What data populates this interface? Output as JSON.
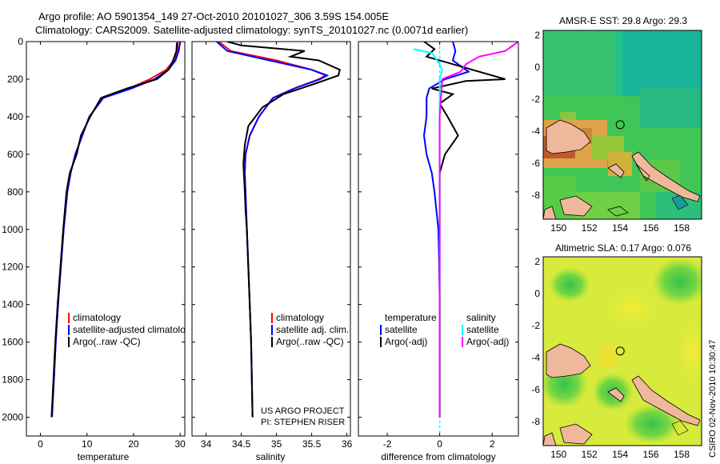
{
  "title": {
    "line1": "Argo profile: AO 5901354_149 27-Oct-2010 20101027_306 3.59S 154.005E",
    "line2": "Climatology: CARS2009. Satellite-adjusted climatology: synTS_20101027.nc (0.0071d earlier)"
  },
  "side_note": "CSIRO 02-Nov-2010 10:30:47",
  "project_note": {
    "line1": "US ARGO PROJECT",
    "line2": "PI: STEPHEN RISER"
  },
  "chart_data": [
    {
      "type": "line",
      "id": "temperature",
      "xlabel": "temperature",
      "ylabel": "",
      "xlim": [
        -3,
        31
      ],
      "ylim": [
        2100,
        0
      ],
      "xticks": [
        0,
        10,
        20,
        30
      ],
      "yticks": [
        0,
        200,
        400,
        600,
        800,
        1000,
        1200,
        1400,
        1600,
        1800,
        2000
      ],
      "legend": [
        "climatology",
        "satellite-adjusted climatology",
        "Argo(..raw -QC)"
      ],
      "series": [
        {
          "name": "climatology",
          "color": "#ff0000",
          "points": [
            [
              29.5,
              0
            ],
            [
              29.4,
              50
            ],
            [
              28.7,
              100
            ],
            [
              27.0,
              150
            ],
            [
              23.5,
              200
            ],
            [
              19,
              250
            ],
            [
              13.5,
              300
            ],
            [
              10.5,
              400
            ],
            [
              9,
              500
            ],
            [
              7.5,
              600
            ],
            [
              6.5,
              700
            ],
            [
              5.8,
              800
            ],
            [
              5,
              1000
            ],
            [
              4.4,
              1200
            ],
            [
              3.8,
              1400
            ],
            [
              3.3,
              1600
            ],
            [
              2.9,
              1800
            ],
            [
              2.5,
              2000
            ]
          ]
        },
        {
          "name": "satellite-adjusted climatology",
          "color": "#0000ff",
          "points": [
            [
              30.0,
              0
            ],
            [
              29.7,
              50
            ],
            [
              29.0,
              100
            ],
            [
              27.5,
              150
            ],
            [
              24.5,
              200
            ],
            [
              19.5,
              250
            ],
            [
              13.5,
              300
            ],
            [
              10.5,
              400
            ],
            [
              9,
              500
            ],
            [
              7.5,
              600
            ],
            [
              6.5,
              700
            ],
            [
              5.8,
              800
            ],
            [
              5,
              1000
            ],
            [
              4.4,
              1200
            ],
            [
              3.8,
              1400
            ],
            [
              3.3,
              1600
            ],
            [
              2.9,
              1800
            ],
            [
              2.5,
              2000
            ]
          ]
        },
        {
          "name": "Argo(..raw -QC)",
          "color": "#000000",
          "points": [
            [
              29.3,
              5
            ],
            [
              29.2,
              50
            ],
            [
              28.5,
              100
            ],
            [
              27.5,
              150
            ],
            [
              25,
              200
            ],
            [
              18.5,
              250
            ],
            [
              13,
              300
            ],
            [
              10.7,
              400
            ],
            [
              8.7,
              500
            ],
            [
              7.8,
              600
            ],
            [
              6.3,
              700
            ],
            [
              5.6,
              800
            ],
            [
              4.9,
              1000
            ],
            [
              4.3,
              1200
            ],
            [
              3.7,
              1400
            ],
            [
              3.2,
              1600
            ],
            [
              2.8,
              1800
            ],
            [
              2.4,
              2000
            ]
          ]
        }
      ]
    },
    {
      "type": "line",
      "id": "salinity",
      "xlabel": "salinity",
      "ylabel": "",
      "xlim": [
        33.8,
        36.05
      ],
      "ylim": [
        2100,
        0
      ],
      "xticks": [
        34,
        34.5,
        35,
        35.5,
        36
      ],
      "legend": [
        "climatology",
        "satellite adj. clim.",
        "Argo(..raw -QC)"
      ],
      "series": [
        {
          "name": "climatology",
          "color": "#ff0000",
          "points": [
            [
              34.18,
              0
            ],
            [
              34.35,
              50
            ],
            [
              35.0,
              100
            ],
            [
              35.5,
              150
            ],
            [
              35.7,
              180
            ],
            [
              35.6,
              200
            ],
            [
              35.25,
              250
            ],
            [
              34.95,
              300
            ],
            [
              34.75,
              400
            ],
            [
              34.62,
              500
            ],
            [
              34.56,
              600
            ],
            [
              34.55,
              700
            ],
            [
              34.56,
              800
            ],
            [
              34.58,
              1000
            ],
            [
              34.6,
              1200
            ],
            [
              34.62,
              1400
            ],
            [
              34.64,
              1600
            ],
            [
              34.65,
              1800
            ],
            [
              34.66,
              2000
            ]
          ]
        },
        {
          "name": "satellite adj. clim.",
          "color": "#0000ff",
          "points": [
            [
              34.15,
              0
            ],
            [
              34.3,
              50
            ],
            [
              34.9,
              100
            ],
            [
              35.5,
              150
            ],
            [
              35.72,
              180
            ],
            [
              35.62,
              200
            ],
            [
              35.25,
              250
            ],
            [
              34.95,
              300
            ],
            [
              34.75,
              400
            ],
            [
              34.62,
              500
            ],
            [
              34.56,
              600
            ],
            [
              34.55,
              700
            ],
            [
              34.56,
              800
            ],
            [
              34.58,
              1000
            ],
            [
              34.6,
              1200
            ],
            [
              34.62,
              1400
            ],
            [
              34.64,
              1600
            ],
            [
              34.65,
              1800
            ],
            [
              34.66,
              2000
            ]
          ]
        },
        {
          "name": "Argo(..raw -QC)",
          "color": "#000000",
          "points": [
            [
              34.3,
              0
            ],
            [
              34.5,
              20
            ],
            [
              35.4,
              50
            ],
            [
              35.2,
              80
            ],
            [
              35.6,
              100
            ],
            [
              35.9,
              150
            ],
            [
              35.88,
              180
            ],
            [
              35.5,
              230
            ],
            [
              35.1,
              280
            ],
            [
              34.8,
              350
            ],
            [
              34.6,
              450
            ],
            [
              34.55,
              550
            ],
            [
              34.53,
              650
            ],
            [
              34.55,
              800
            ],
            [
              34.56,
              900
            ],
            [
              34.58,
              1000
            ],
            [
              34.6,
              1200
            ],
            [
              34.62,
              1400
            ],
            [
              34.64,
              1600
            ],
            [
              34.65,
              1800
            ],
            [
              34.66,
              2000
            ]
          ]
        }
      ]
    },
    {
      "type": "line",
      "id": "difference",
      "xlabel": "difference from climatology",
      "ylabel": "",
      "xlim": [
        -3.1,
        3.0
      ],
      "ylim": [
        2100,
        0
      ],
      "xticks": [
        -2,
        0,
        2
      ],
      "legend_headers": [
        "temperature",
        "salinity"
      ],
      "legend": [
        "satellite",
        "Argo(-adj)",
        "satellite",
        "Argo(-adj)"
      ],
      "series": [
        {
          "name": "satellite",
          "group": "temperature",
          "color": "#0000ff",
          "points": [
            [
              0.5,
              0
            ],
            [
              0.6,
              50
            ],
            [
              0.5,
              100
            ],
            [
              1.1,
              160
            ],
            [
              0.2,
              200
            ],
            [
              -0.4,
              250
            ],
            [
              -0.5,
              300
            ],
            [
              -0.5,
              400
            ],
            [
              -0.6,
              500
            ],
            [
              -0.5,
              600
            ],
            [
              -0.3,
              700
            ],
            [
              -0.2,
              800
            ],
            [
              -0.05,
              1000
            ],
            [
              -0.02,
              1200
            ],
            [
              0,
              1400
            ],
            [
              0,
              1600
            ],
            [
              0,
              1800
            ],
            [
              0,
              2000
            ]
          ]
        },
        {
          "name": "Argo(-adj)",
          "group": "temperature",
          "color": "#000000",
          "points": [
            [
              -0.6,
              0
            ],
            [
              -0.2,
              40
            ],
            [
              -0.5,
              80
            ],
            [
              0.5,
              120
            ],
            [
              2.5,
              200
            ],
            [
              1.0,
              210
            ],
            [
              -0.3,
              250
            ],
            [
              0.5,
              280
            ],
            [
              0.0,
              330
            ],
            [
              0.3,
              400
            ],
            [
              0.7,
              500
            ],
            [
              0.2,
              600
            ],
            [
              0.0,
              700
            ],
            [
              0,
              800
            ],
            [
              0,
              1000
            ],
            [
              0,
              1200
            ],
            [
              0,
              1400
            ],
            [
              0,
              1600
            ],
            [
              0,
              1800
            ],
            [
              0,
              2000
            ]
          ]
        },
        {
          "name": "satellite",
          "group": "salinity",
          "color": "#00ffff",
          "points": [
            [
              -1.0,
              40
            ],
            [
              -0.3,
              60
            ],
            [
              -0.1,
              100
            ],
            [
              0.1,
              150
            ],
            [
              0,
              200
            ],
            [
              0,
              400
            ],
            [
              0,
              800
            ],
            [
              0,
              1200
            ],
            [
              0,
              1600
            ],
            [
              0,
              2000
            ]
          ]
        },
        {
          "name": "Argo(-adj)",
          "group": "salinity",
          "color": "#ff00ff",
          "points": [
            [
              3.0,
              0
            ],
            [
              2.5,
              50
            ],
            [
              1.5,
              80
            ],
            [
              1.0,
              120
            ],
            [
              0.8,
              160
            ],
            [
              0.1,
              200
            ],
            [
              0,
              400
            ],
            [
              0,
              800
            ],
            [
              0,
              1200
            ],
            [
              0,
              1600
            ],
            [
              0,
              2000
            ]
          ]
        }
      ]
    },
    {
      "type": "heatmap",
      "id": "sst-map",
      "title": "AMSR-E SST: 29.8 Argo: 29.3",
      "xlim": [
        149,
        159.3
      ],
      "ylim": [
        -9.5,
        2.3
      ],
      "xticks": [
        150,
        152,
        154,
        156,
        158
      ],
      "yticks": [
        2,
        0,
        -2,
        -4,
        -6,
        -8
      ],
      "argo_position": [
        154.005,
        -3.59
      ]
    },
    {
      "type": "heatmap",
      "id": "sla-map",
      "title": "Altimetric SLA: 0.17 Argo: 0.076",
      "xlim": [
        149,
        159.3
      ],
      "ylim": [
        -9.5,
        2.3
      ],
      "xticks": [
        150,
        152,
        154,
        156,
        158
      ],
      "yticks": [
        2,
        0,
        -2,
        -4,
        -6,
        -8
      ],
      "argo_position": [
        154.005,
        -3.59
      ]
    }
  ]
}
